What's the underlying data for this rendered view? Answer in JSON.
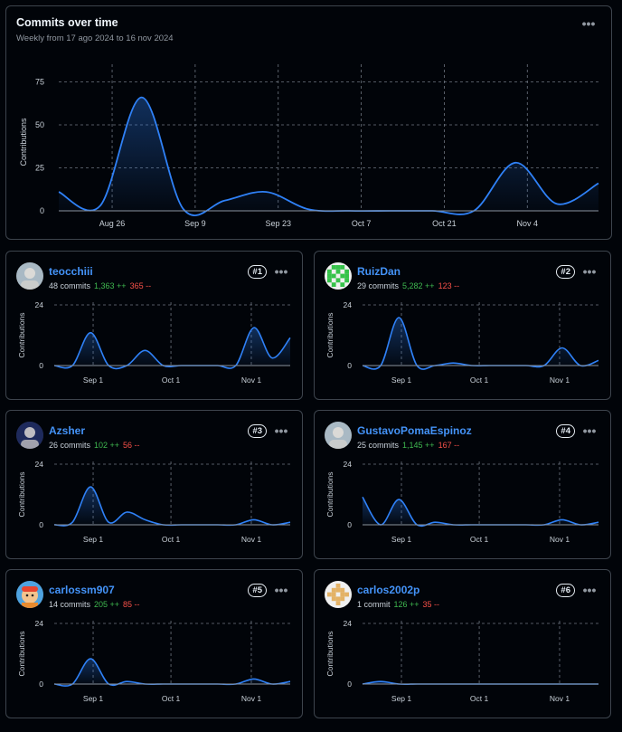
{
  "overview": {
    "title": "Commits over time",
    "subtitle": "Weekly from 17 ago 2024 to 16 nov 2024",
    "menu_icon": "kebab-horizontal-icon",
    "chart_data": {
      "type": "area",
      "ylabel": "Contributions",
      "xlabel": "",
      "ylim": [
        0,
        80
      ],
      "yticks": [
        0,
        25,
        50,
        75
      ],
      "xtick_labels": [
        "Aug 26",
        "Sep 9",
        "Sep 23",
        "Oct 7",
        "Oct 21",
        "Nov 4"
      ],
      "xtick_dates": [
        "2024-08-26",
        "2024-09-09",
        "2024-09-23",
        "2024-10-07",
        "2024-10-21",
        "2024-11-04"
      ],
      "x": [
        "2024-08-17",
        "2024-08-24",
        "2024-08-31",
        "2024-09-07",
        "2024-09-14",
        "2024-09-21",
        "2024-09-28",
        "2024-10-05",
        "2024-10-12",
        "2024-10-19",
        "2024-10-26",
        "2024-11-02",
        "2024-11-09",
        "2024-11-16"
      ],
      "series": [
        {
          "values": [
            11,
            3,
            66,
            1,
            6,
            11,
            1,
            0,
            0,
            0,
            0,
            28,
            4,
            16
          ]
        }
      ],
      "grid": true,
      "color": "#2f81f7"
    }
  },
  "contributors": [
    {
      "rank": "#1",
      "name": "teocchiii",
      "commits": "48 commits",
      "additions": "1,363 ++",
      "deletions": "365 --",
      "avatar_icon": "avatar-photo-icon",
      "chart_data": {
        "type": "area",
        "ylabel": "Contributions",
        "ylim": [
          0,
          24
        ],
        "yticks": [
          0,
          24
        ],
        "xtick_labels": [
          "Sep 1",
          "Oct 1",
          "Nov 1"
        ],
        "xtick_dates": [
          "2024-09-01",
          "2024-10-01",
          "2024-11-01"
        ],
        "x": [
          "2024-08-17",
          "2024-08-24",
          "2024-08-31",
          "2024-09-07",
          "2024-09-14",
          "2024-09-21",
          "2024-09-28",
          "2024-10-05",
          "2024-10-12",
          "2024-10-19",
          "2024-10-26",
          "2024-11-02",
          "2024-11-09",
          "2024-11-16"
        ],
        "series": [
          {
            "values": [
              0,
              0,
              13,
              0,
              0,
              6,
              0,
              0,
              0,
              0,
              0,
              15,
              3,
              11
            ]
          }
        ]
      }
    },
    {
      "rank": "#2",
      "name": "RuizDan",
      "commits": "29 commits",
      "additions": "5,282 ++",
      "deletions": "123 --",
      "avatar_icon": "avatar-identicon-icon",
      "chart_data": {
        "type": "area",
        "ylabel": "Contributions",
        "ylim": [
          0,
          24
        ],
        "yticks": [
          0,
          24
        ],
        "xtick_labels": [
          "Sep 1",
          "Oct 1",
          "Nov 1"
        ],
        "xtick_dates": [
          "2024-09-01",
          "2024-10-01",
          "2024-11-01"
        ],
        "x": [
          "2024-08-17",
          "2024-08-24",
          "2024-08-31",
          "2024-09-07",
          "2024-09-14",
          "2024-09-21",
          "2024-09-28",
          "2024-10-05",
          "2024-10-12",
          "2024-10-19",
          "2024-10-26",
          "2024-11-02",
          "2024-11-09",
          "2024-11-16"
        ],
        "series": [
          {
            "values": [
              0,
              0,
              19,
              0,
              0,
              1,
              0,
              0,
              0,
              0,
              0,
              7,
              0,
              2
            ]
          }
        ]
      }
    },
    {
      "rank": "#3",
      "name": "Azsher",
      "commits": "26 commits",
      "additions": "102 ++",
      "deletions": "56 --",
      "avatar_icon": "avatar-photo-icon",
      "chart_data": {
        "type": "area",
        "ylabel": "Contributions",
        "ylim": [
          0,
          24
        ],
        "yticks": [
          0,
          24
        ],
        "xtick_labels": [
          "Sep 1",
          "Oct 1",
          "Nov 1"
        ],
        "xtick_dates": [
          "2024-09-01",
          "2024-10-01",
          "2024-11-01"
        ],
        "x": [
          "2024-08-17",
          "2024-08-24",
          "2024-08-31",
          "2024-09-07",
          "2024-09-14",
          "2024-09-21",
          "2024-09-28",
          "2024-10-05",
          "2024-10-12",
          "2024-10-19",
          "2024-10-26",
          "2024-11-02",
          "2024-11-09",
          "2024-11-16"
        ],
        "series": [
          {
            "values": [
              0,
              1,
              15,
              1,
              5,
              2,
              0,
              0,
              0,
              0,
              0,
              2,
              0,
              1
            ]
          }
        ]
      }
    },
    {
      "rank": "#4",
      "name": "GustavoPomaEspinoz",
      "commits": "25 commits",
      "additions": "1,145 ++",
      "deletions": "167 --",
      "avatar_icon": "avatar-photo-icon",
      "chart_data": {
        "type": "area",
        "ylabel": "Contributions",
        "ylim": [
          0,
          24
        ],
        "yticks": [
          0,
          24
        ],
        "xtick_labels": [
          "Sep 1",
          "Oct 1",
          "Nov 1"
        ],
        "xtick_dates": [
          "2024-09-01",
          "2024-10-01",
          "2024-11-01"
        ],
        "x": [
          "2024-08-17",
          "2024-08-24",
          "2024-08-31",
          "2024-09-07",
          "2024-09-14",
          "2024-09-21",
          "2024-09-28",
          "2024-10-05",
          "2024-10-12",
          "2024-10-19",
          "2024-10-26",
          "2024-11-02",
          "2024-11-09",
          "2024-11-16"
        ],
        "series": [
          {
            "values": [
              11,
              0,
              10,
              0,
              1,
              0,
              0,
              0,
              0,
              0,
              0,
              2,
              0,
              1
            ]
          }
        ]
      }
    },
    {
      "rank": "#5",
      "name": "carlossm907",
      "commits": "14 commits",
      "additions": "205 ++",
      "deletions": "85 --",
      "avatar_icon": "avatar-cartoon-icon",
      "chart_data": {
        "type": "area",
        "ylabel": "Contributions",
        "ylim": [
          0,
          24
        ],
        "yticks": [
          0,
          24
        ],
        "xtick_labels": [
          "Sep 1",
          "Oct 1",
          "Nov 1"
        ],
        "xtick_dates": [
          "2024-09-01",
          "2024-10-01",
          "2024-11-01"
        ],
        "x": [
          "2024-08-17",
          "2024-08-24",
          "2024-08-31",
          "2024-09-07",
          "2024-09-14",
          "2024-09-21",
          "2024-09-28",
          "2024-10-05",
          "2024-10-12",
          "2024-10-19",
          "2024-10-26",
          "2024-11-02",
          "2024-11-09",
          "2024-11-16"
        ],
        "series": [
          {
            "values": [
              0,
              0,
              10,
              0,
              1,
              0,
              0,
              0,
              0,
              0,
              0,
              2,
              0,
              1
            ]
          }
        ]
      }
    },
    {
      "rank": "#6",
      "name": "carlos2002p",
      "commits": "1 commit",
      "additions": "126 ++",
      "deletions": "35 --",
      "avatar_icon": "avatar-identicon-icon",
      "chart_data": {
        "type": "area",
        "ylabel": "Contributions",
        "ylim": [
          0,
          24
        ],
        "yticks": [
          0,
          24
        ],
        "xtick_labels": [
          "Sep 1",
          "Oct 1",
          "Nov 1"
        ],
        "xtick_dates": [
          "2024-09-01",
          "2024-10-01",
          "2024-11-01"
        ],
        "x": [
          "2024-08-17",
          "2024-08-24",
          "2024-08-31",
          "2024-09-07",
          "2024-09-14",
          "2024-09-21",
          "2024-09-28",
          "2024-10-05",
          "2024-10-12",
          "2024-10-19",
          "2024-10-26",
          "2024-11-02",
          "2024-11-09",
          "2024-11-16"
        ],
        "series": [
          {
            "values": [
              0,
              1,
              0,
              0,
              0,
              0,
              0,
              0,
              0,
              0,
              0,
              0,
              0,
              0
            ]
          }
        ]
      }
    }
  ],
  "colors": {
    "line": "#2f81f7",
    "grid": "#6e7681",
    "additions": "#3fb950",
    "deletions": "#f85149",
    "link": "#4493f8"
  }
}
